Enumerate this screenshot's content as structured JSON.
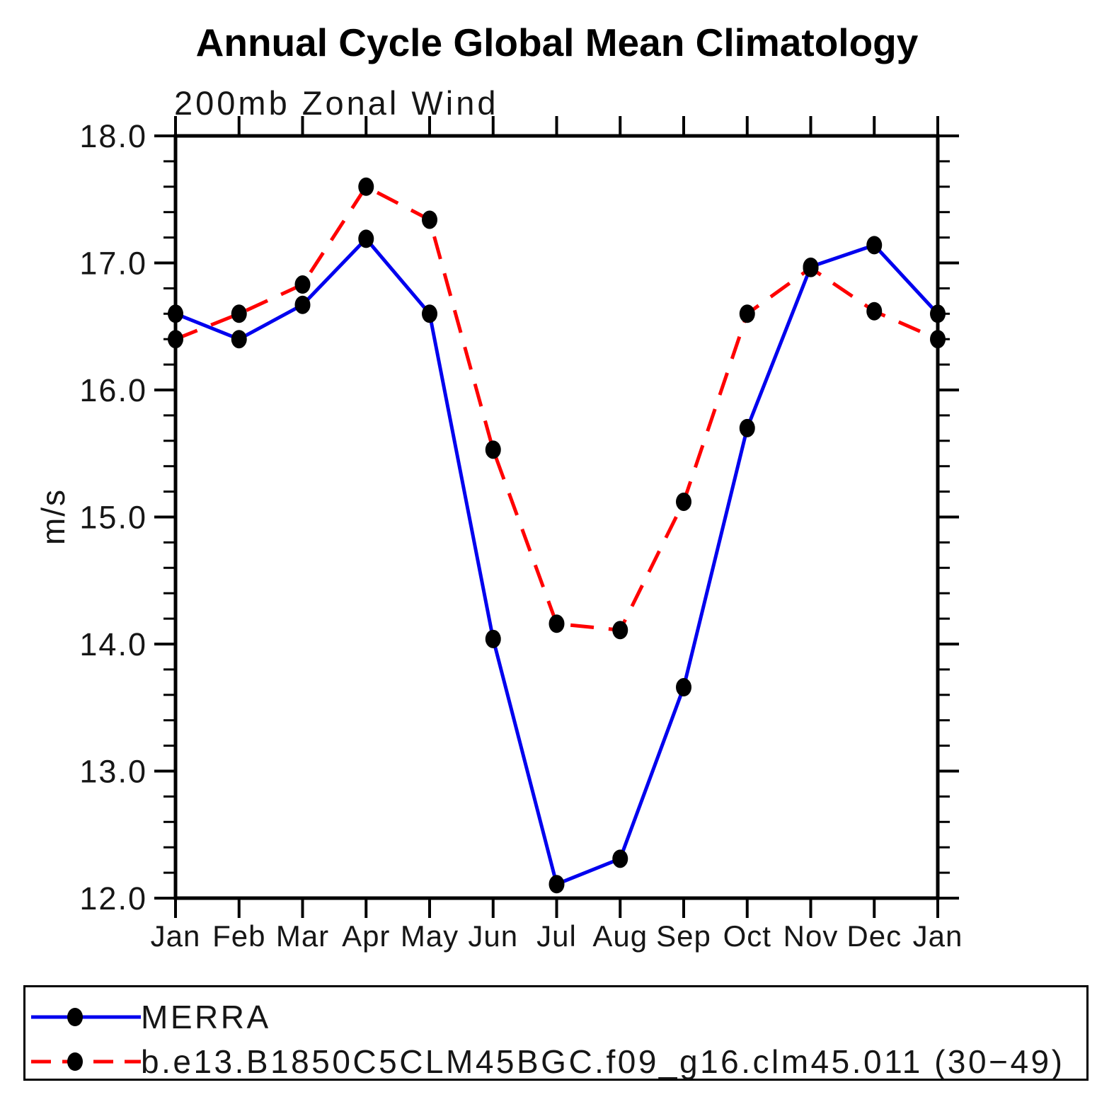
{
  "title": "Annual Cycle Global Mean Climatology",
  "subtitle": "200mb Zonal Wind",
  "y_axis_label": "m/s",
  "chart_data": {
    "type": "line",
    "categories": [
      "Jan",
      "Feb",
      "Mar",
      "Apr",
      "May",
      "Jun",
      "Jul",
      "Aug",
      "Sep",
      "Oct",
      "Nov",
      "Dec",
      "Jan"
    ],
    "series": [
      {
        "name": "MERRA",
        "color": "#0000ee",
        "line_style": "solid",
        "values": [
          16.6,
          16.4,
          16.67,
          17.19,
          16.6,
          14.04,
          12.11,
          12.31,
          13.66,
          15.7,
          16.97,
          17.14,
          16.6
        ]
      },
      {
        "name": "b.e13.B1850C5CLM45BGC.f09_g16.clm45.011 (30−49)",
        "color": "#ff0000",
        "line_style": "dashed",
        "values": [
          16.4,
          16.6,
          16.83,
          17.6,
          17.34,
          15.53,
          14.16,
          14.11,
          15.12,
          16.6,
          16.96,
          16.62,
          16.4
        ]
      }
    ],
    "ylim": [
      12.0,
      18.0
    ],
    "yticks": [
      12.0,
      13.0,
      14.0,
      15.0,
      16.0,
      17.0,
      18.0
    ],
    "ytick_labels": [
      "12.0",
      "13.0",
      "14.0",
      "15.0",
      "16.0",
      "17.0",
      "18.0"
    ],
    "y_minor_step": 0.2,
    "marker": "filled-circle",
    "marker_color": "#000000",
    "grid": false,
    "legend_position": "bottom"
  },
  "legend": {
    "items": [
      {
        "label": "MERRA",
        "color": "#0000ee",
        "line_style": "solid"
      },
      {
        "label": "b.e13.B1850C5CLM45BGC.f09_g16.clm45.011 (30−49)",
        "color": "#ff0000",
        "line_style": "dashed"
      }
    ]
  }
}
